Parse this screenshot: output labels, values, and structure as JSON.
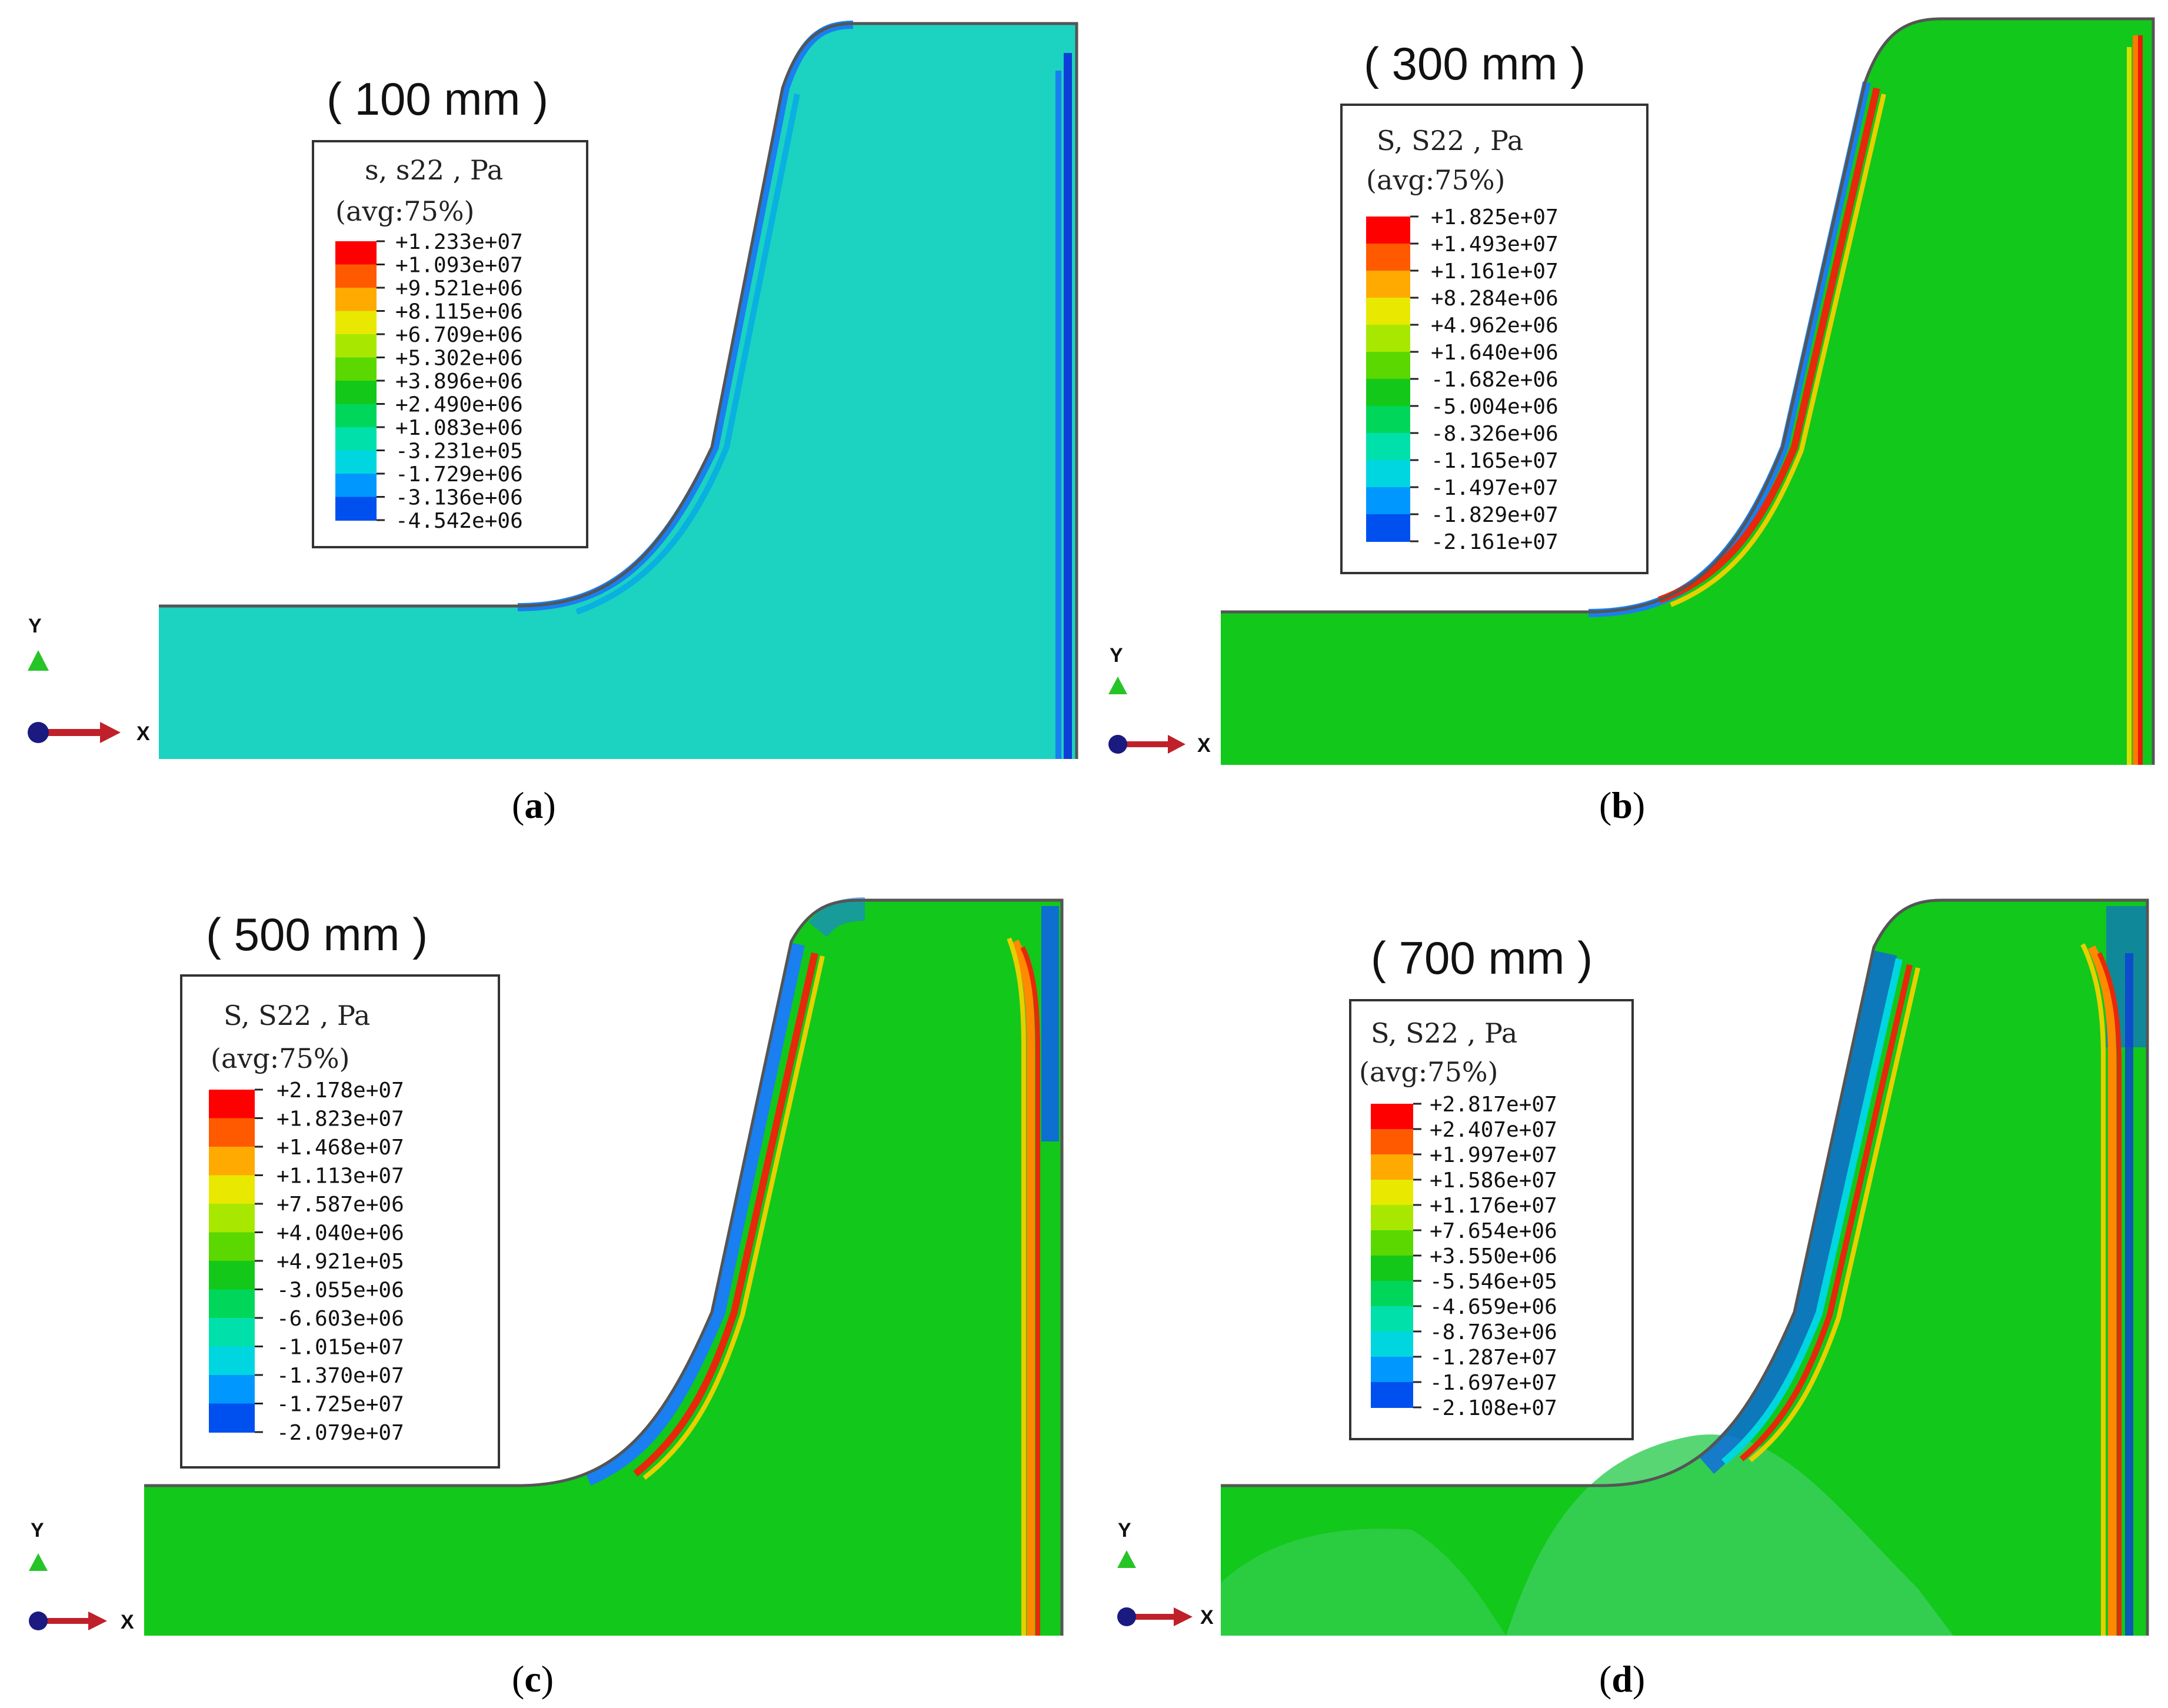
{
  "figure": {
    "panels": [
      {
        "id": "a",
        "title": "( 100 mm )",
        "caption_letter": "a",
        "legend_title": "s, s22 , Pa",
        "legend_avg": "(avg:75%)",
        "legend_values": [
          "+1.233e+07",
          "+1.093e+07",
          "+9.521e+06",
          "+8.115e+06",
          "+6.709e+06",
          "+5.302e+06",
          "+3.896e+06",
          "+2.490e+06",
          "+1.083e+06",
          "-3.231e+05",
          "-1.729e+06",
          "-3.136e+06",
          "-4.542e+06"
        ],
        "body_color": "#1bd3c0"
      },
      {
        "id": "b",
        "title": "( 300 mm )",
        "caption_letter": "b",
        "legend_title": "S, S22 , Pa",
        "legend_avg": "(avg:75%)",
        "legend_values": [
          "+1.825e+07",
          "+1.493e+07",
          "+1.161e+07",
          "+8.284e+06",
          "+4.962e+06",
          "+1.640e+06",
          "-1.682e+06",
          "-5.004e+06",
          "-8.326e+06",
          "-1.165e+07",
          "-1.497e+07",
          "-1.829e+07",
          "-2.161e+07"
        ],
        "body_color": "#12c81a"
      },
      {
        "id": "c",
        "title": "( 500 mm )",
        "caption_letter": "c",
        "legend_title": "S, S22 , Pa",
        "legend_avg": "(avg:75%)",
        "legend_values": [
          "+2.178e+07",
          "+1.823e+07",
          "+1.468e+07",
          "+1.113e+07",
          "+7.587e+06",
          "+4.040e+06",
          "+4.921e+05",
          "-3.055e+06",
          "-6.603e+06",
          "-1.015e+07",
          "-1.370e+07",
          "-1.725e+07",
          "-2.079e+07"
        ],
        "body_color": "#12c81a"
      },
      {
        "id": "d",
        "title": "( 700 mm )",
        "caption_letter": "d",
        "legend_title": "S, S22 , Pa",
        "legend_avg": "(avg:75%)",
        "legend_values": [
          "+2.817e+07",
          "+2.407e+07",
          "+1.997e+07",
          "+1.586e+07",
          "+1.176e+07",
          "+7.654e+06",
          "+3.550e+06",
          "-5.546e+05",
          "-4.659e+06",
          "-8.763e+06",
          "-1.287e+07",
          "-1.697e+07",
          "-2.108e+07"
        ],
        "body_color": "#12c81a"
      }
    ],
    "axis_x_label": "X",
    "axis_y_label": "Y",
    "colormap": [
      "#ff0000",
      "#ff5a00",
      "#ffaa00",
      "#e8e800",
      "#a8e800",
      "#5ad800",
      "#14c81a",
      "#00d65a",
      "#00e0aa",
      "#00d6e0",
      "#0098ff",
      "#0050f0",
      "#0000e8"
    ]
  }
}
